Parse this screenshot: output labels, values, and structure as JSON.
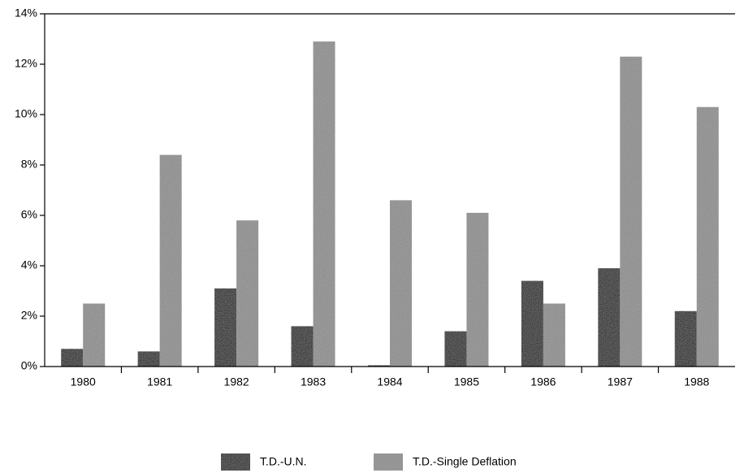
{
  "chart_data": {
    "type": "bar",
    "categories": [
      "1980",
      "1981",
      "1982",
      "1983",
      "1984",
      "1985",
      "1986",
      "1987",
      "1988"
    ],
    "series": [
      {
        "name": "T.D.-U.N.",
        "color": "#111111",
        "values": [
          0.7,
          0.6,
          3.1,
          1.6,
          0.05,
          1.4,
          3.4,
          3.9,
          2.2
        ]
      },
      {
        "name": "T.D.-Single Deflation",
        "color": "#8c8c8c",
        "values": [
          2.5,
          8.4,
          5.8,
          12.9,
          6.6,
          6.1,
          2.5,
          12.3,
          10.3
        ]
      }
    ],
    "ylim": [
      0,
      14
    ],
    "yticks": [
      {
        "value": 0,
        "label": "0%"
      },
      {
        "value": 2,
        "label": "2%"
      },
      {
        "value": 4,
        "label": "4%"
      },
      {
        "value": 6,
        "label": "6%"
      },
      {
        "value": 8,
        "label": "8%"
      },
      {
        "value": 10,
        "label": "10%"
      },
      {
        "value": 12,
        "label": "12%"
      },
      {
        "value": 14,
        "label": "14%"
      }
    ],
    "grid": false,
    "legend": "bottom"
  }
}
